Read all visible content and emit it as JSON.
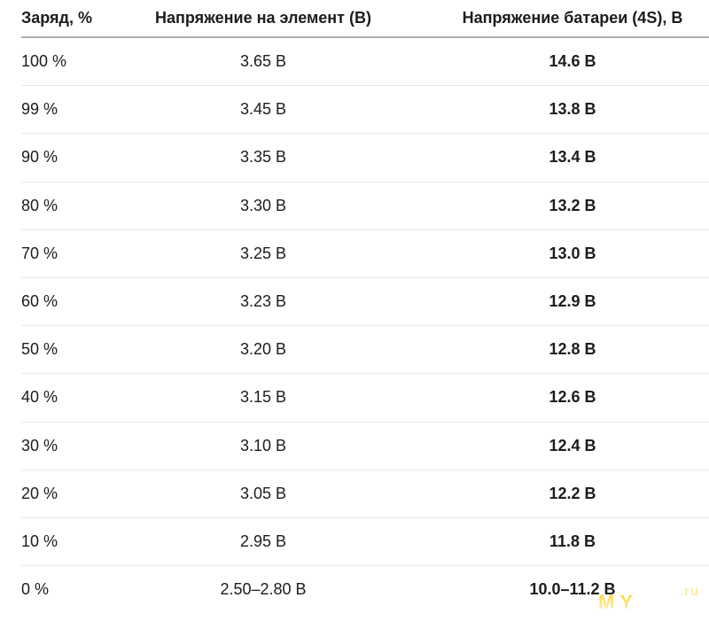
{
  "table": {
    "headers": [
      "Заряд, %",
      "Напряжение на элемент (В)",
      "Напряжение батареи (4S), В"
    ],
    "rows": [
      {
        "charge": "100 %",
        "cell_voltage": "3.65 В",
        "battery_voltage": "14.6 В"
      },
      {
        "charge": "99 %",
        "cell_voltage": "3.45 В",
        "battery_voltage": "13.8 В"
      },
      {
        "charge": "90 %",
        "cell_voltage": "3.35 В",
        "battery_voltage": "13.4 В"
      },
      {
        "charge": "80 %",
        "cell_voltage": "3.30 В",
        "battery_voltage": "13.2 В"
      },
      {
        "charge": "70 %",
        "cell_voltage": "3.25 В",
        "battery_voltage": "13.0 В"
      },
      {
        "charge": "60 %",
        "cell_voltage": "3.23 В",
        "battery_voltage": "12.9 В"
      },
      {
        "charge": "50 %",
        "cell_voltage": "3.20 В",
        "battery_voltage": "12.8 В"
      },
      {
        "charge": "40 %",
        "cell_voltage": "3.15 В",
        "battery_voltage": "12.6 В"
      },
      {
        "charge": "30 %",
        "cell_voltage": "3.10 В",
        "battery_voltage": "12.4 В"
      },
      {
        "charge": "20 %",
        "cell_voltage": "3.05 В",
        "battery_voltage": "12.2 В"
      },
      {
        "charge": "10 %",
        "cell_voltage": "2.95 В",
        "battery_voltage": "11.8 В"
      },
      {
        "charge": "0 %",
        "cell_voltage": "2.50–2.80 В",
        "battery_voltage": "10.0–11.2 В"
      }
    ]
  },
  "watermark": {
    "text_main": "MY",
    "text_suffix": ".ru",
    "color_main": "#fed643",
    "color_suffix": "#fbec9e"
  },
  "colors": {
    "text": "#1c1c1c",
    "header_rule": "#aeaeae",
    "row_rule": "#e9e9e9",
    "background": "#ffffff"
  },
  "chart_data": {
    "type": "table",
    "title": "",
    "columns": [
      "Заряд, %",
      "Напряжение на элемент (В)",
      "Напряжение батареи (4S), В"
    ],
    "rows": [
      [
        "100 %",
        "3.65 В",
        "14.6 В"
      ],
      [
        "99 %",
        "3.45 В",
        "13.8 В"
      ],
      [
        "90 %",
        "3.35 В",
        "13.4 В"
      ],
      [
        "80 %",
        "3.30 В",
        "13.2 В"
      ],
      [
        "70 %",
        "3.25 В",
        "13.0 В"
      ],
      [
        "60 %",
        "3.23 В",
        "12.9 В"
      ],
      [
        "50 %",
        "3.20 В",
        "12.8 В"
      ],
      [
        "40 %",
        "3.15 В",
        "12.6 В"
      ],
      [
        "30 %",
        "3.10 В",
        "12.4 В"
      ],
      [
        "20 %",
        "3.05 В",
        "12.2 В"
      ],
      [
        "10 %",
        "2.95 В",
        "11.8 В"
      ],
      [
        "0 %",
        "2.50–2.80 В",
        "10.0–11.2 В"
      ]
    ]
  }
}
